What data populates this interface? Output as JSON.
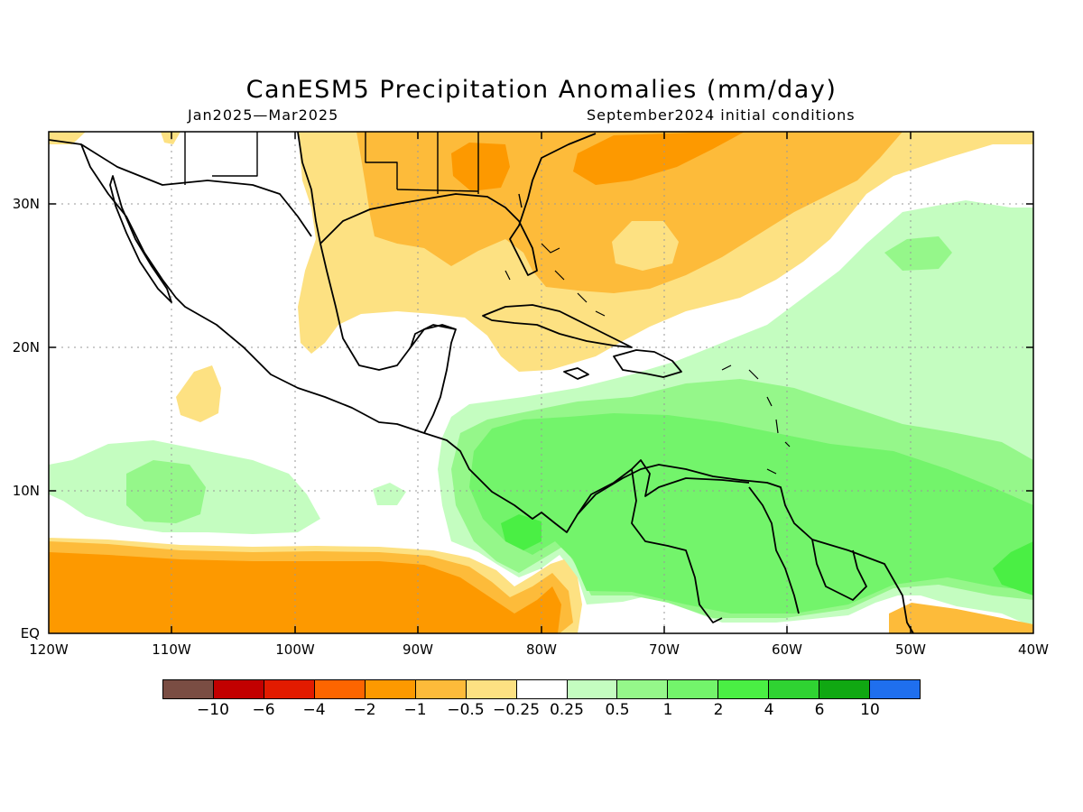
{
  "header": {
    "title": "CanESM5 Precipitation Anomalies (mm/day)",
    "period": "Jan2025—Mar2025",
    "init": "September2024 initial conditions"
  },
  "axes": {
    "lat_labels": [
      "30N",
      "20N",
      "10N",
      "EQ"
    ],
    "lon_labels": [
      "120W",
      "110W",
      "100W",
      "90W",
      "80W",
      "70W",
      "60W",
      "50W",
      "40W"
    ]
  },
  "legend": {
    "colors": [
      "#7a4d43",
      "#c20000",
      "#e21b00",
      "#fd6500",
      "#fd9900",
      "#fdbb3a",
      "#fde182",
      "#ffffff",
      "#c4fdc0",
      "#95f78a",
      "#73f46b",
      "#4aef44",
      "#2fd332",
      "#10a812",
      "#1f6fee"
    ],
    "labels": [
      "−10",
      "−6",
      "−4",
      "−2",
      "−1",
      "−0.5",
      "−0.25",
      "0.25",
      "0.5",
      "1",
      "2",
      "4",
      "6",
      "10"
    ]
  },
  "map_colors": {
    "orange_dark": "#fd9900",
    "orange_mid": "#fdbb3a",
    "yellow": "#fde182",
    "green_light": "#c4fdc0",
    "green_mid": "#95f78a",
    "green": "#73f46b",
    "green_strong": "#4aef44"
  }
}
